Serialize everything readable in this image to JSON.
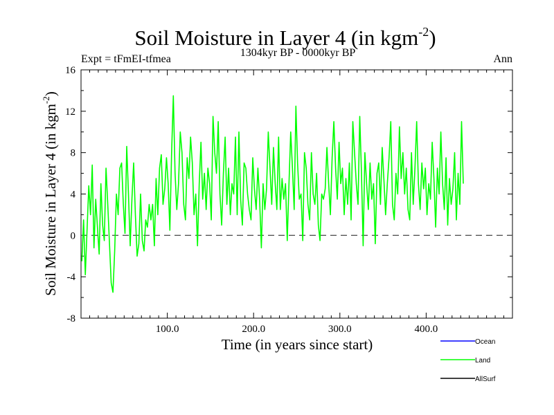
{
  "chart_data": {
    "type": "line",
    "title": "Soil Moisture in Layer 4 (in kgm",
    "title_superscript": "-2",
    "title_close": ")",
    "subtitle": "1304kyr BP - 0000kyr BP",
    "left_label": "Expt = tFmEI-tfmea",
    "right_label": "Ann",
    "xlabel": "Time (in years since start)",
    "ylabel": "Soil Moisture in Layer 4 (in kgm",
    "ylabel_superscript": "-2",
    "ylabel_close": ")",
    "xlim": [
      0,
      500
    ],
    "ylim": [
      -8,
      16
    ],
    "xticks": [
      100,
      200,
      300,
      400
    ],
    "xtick_labels": [
      "100.0",
      "200.0",
      "300.0",
      "400.0"
    ],
    "yticks": [
      -8,
      -4,
      0,
      4,
      8,
      12,
      16
    ],
    "ytick_labels": [
      "-8",
      "-4",
      "0",
      "4",
      "8",
      "12",
      "16"
    ],
    "zero_line": {
      "value": 0,
      "style": "dashed",
      "color": "#555555"
    },
    "series": [
      {
        "name": "Ocean",
        "color": "#0000ff",
        "values": []
      },
      {
        "name": "Land",
        "color": "#00ff00",
        "x_start": 1,
        "x_step": 2,
        "values": [
          -2.5,
          1.5,
          -3.8,
          0.5,
          4.8,
          2.0,
          6.8,
          -1.2,
          3.5,
          0.8,
          -1.8,
          5.0,
          1.0,
          -0.5,
          6.5,
          3.0,
          -0.8,
          -4.6,
          -5.5,
          -1.5,
          4.0,
          2.0,
          6.5,
          7.0,
          3.0,
          0.2,
          8.6,
          4.0,
          -1.0,
          3.5,
          7.0,
          2.0,
          -2.0,
          -0.8,
          4.0,
          -0.5,
          -1.5,
          1.5,
          0.8,
          3.0,
          1.5,
          3.0,
          -1.0,
          5.5,
          2.0,
          6.5,
          7.8,
          3.0,
          4.5,
          7.5,
          5.0,
          0.5,
          8.0,
          13.5,
          6.0,
          2.5,
          5.0,
          10.0,
          8.0,
          3.0,
          1.5,
          7.5,
          5.5,
          9.5,
          7.0,
          2.0,
          4.0,
          -1.0,
          5.0,
          9.0,
          3.5,
          6.0,
          2.5,
          6.5,
          5.0,
          1.5,
          11.5,
          8.0,
          6.0,
          11.0,
          4.0,
          1.0,
          6.0,
          9.5,
          3.0,
          6.5,
          2.0,
          5.0,
          4.0,
          9.5,
          2.0,
          10.0,
          3.5,
          1.0,
          7.0,
          6.5,
          4.0,
          2.5,
          1.5,
          7.5,
          4.5,
          2.5,
          6.5,
          3.5,
          -1.2,
          5.0,
          2.5,
          4.5,
          10.0,
          6.5,
          3.0,
          8.5,
          5.0,
          2.5,
          9.5,
          2.5,
          5.5,
          3.5,
          5.0,
          -0.5,
          5.0,
          10.0,
          6.5,
          2.5,
          12.5,
          7.0,
          3.5,
          4.0,
          -0.5,
          8.0,
          6.5,
          3.0,
          1.5,
          8.0,
          4.0,
          3.0,
          6.0,
          1.0,
          -0.5,
          4.0,
          3.5,
          4.5,
          8.5,
          5.0,
          2.0,
          7.5,
          11.0,
          6.5,
          3.5,
          9.0,
          5.0,
          6.5,
          2.0,
          5.5,
          3.0,
          7.0,
          1.5,
          11.0,
          8.0,
          5.0,
          3.0,
          11.5,
          6.0,
          -1.0,
          8.0,
          5.0,
          2.5,
          7.0,
          3.5,
          5.0,
          -0.8,
          6.0,
          7.0,
          3.0,
          8.5,
          5.5,
          2.0,
          5.0,
          7.5,
          11.0,
          3.0,
          1.5,
          6.0,
          4.0,
          10.5,
          5.5,
          8.0,
          4.0,
          6.5,
          2.5,
          1.5,
          8.0,
          3.0,
          6.5,
          11.0,
          5.0,
          2.5,
          7.0,
          4.5,
          6.5,
          2.0,
          5.0,
          3.5,
          9.0,
          5.5,
          0.8,
          6.5,
          4.0,
          10.0,
          5.0,
          2.5,
          7.5,
          1.0,
          5.5,
          3.0,
          4.5,
          8.0,
          1.5,
          6.0,
          3.0,
          11.0,
          5.0
        ]
      },
      {
        "name": "AllSurf",
        "color": "#000000",
        "values": []
      }
    ],
    "legend_position": "bottom-right"
  }
}
